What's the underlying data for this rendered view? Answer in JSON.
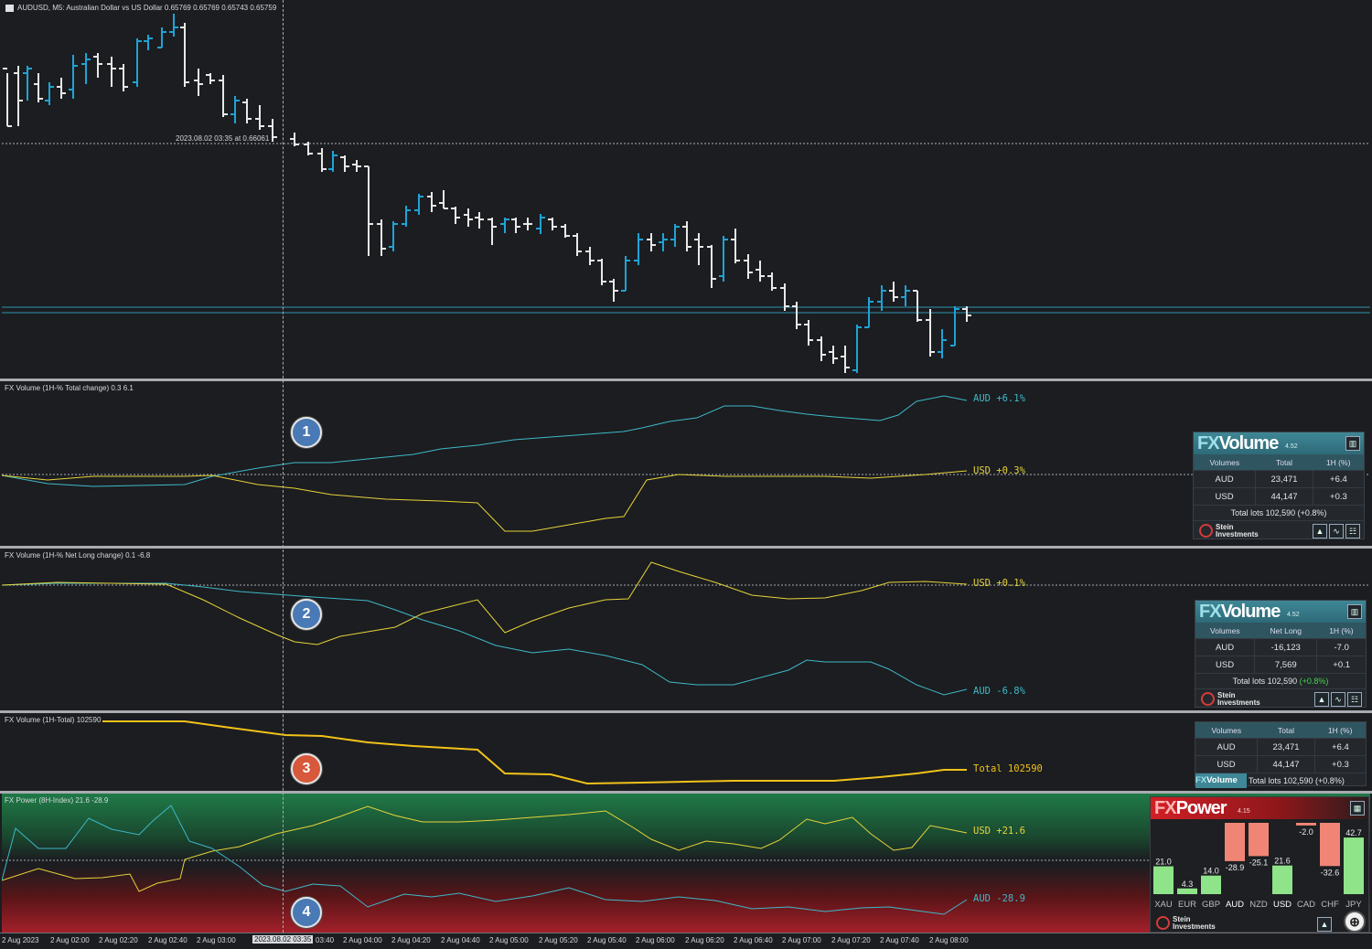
{
  "chart": {
    "title": "AUDUSD, M5:  Australian Dollar vs US Dollar  0.65769 0.65769 0.65743 0.65759",
    "crosshair_label": "2023.08.02 03:35 at 0.66061"
  },
  "panes": {
    "p1": {
      "title": "FX Volume (1H-% Total change)  0.3 6.1",
      "aud_label": "AUD +6.1%",
      "usd_label": "USD +0.3%",
      "badge": "1"
    },
    "p2": {
      "title": "FX Volume (1H-% Net Long change)  0.1 -6.8",
      "usd_label": "USD +0.1%",
      "aud_label": "AUD -6.8%",
      "badge": "2"
    },
    "p3": {
      "title": "FX Volume (1H-Total)  102590",
      "total_label": "Total 102590",
      "badge": "3"
    },
    "p4": {
      "title": "FX Power (8H-Index) 21.6 -28.9",
      "usd_label": "USD +21.6",
      "aud_label": "AUD -28.9",
      "badge": "4"
    }
  },
  "colors": {
    "aud": "#3fb8c8",
    "usd": "#e6d33a",
    "total": "#f2c21a",
    "bull": "#1fa3d6",
    "bear": "#e8e8e8"
  },
  "widget1": {
    "brand_fx": "FX",
    "brand_name": "Volume",
    "version": "4.52",
    "headers": [
      "Volumes",
      "Total",
      "1H (%)"
    ],
    "rows": [
      {
        "cur": "AUD",
        "val": "23,471",
        "pct": "+6.4"
      },
      {
        "cur": "USD",
        "val": "44,147",
        "pct": "+0.3"
      }
    ],
    "total": "Total lots 102,590 (+0.8%)",
    "footer_line1": "Stein",
    "footer_line2": "Investments"
  },
  "widget2": {
    "brand_fx": "FX",
    "brand_name": "Volume",
    "version": "4.52",
    "headers": [
      "Volumes",
      "Net Long",
      "1H (%)"
    ],
    "rows": [
      {
        "cur": "AUD",
        "val": "-16,123",
        "pct": "-7.0"
      },
      {
        "cur": "USD",
        "val": "7,569",
        "pct": "+0.1"
      }
    ],
    "total_prefix": "Total lots 102,590 ",
    "total_pct": "(+0.8%)",
    "footer_line1": "Stein",
    "footer_line2": "Investments"
  },
  "widget3": {
    "headers": [
      "Volumes",
      "Total",
      "1H (%)"
    ],
    "rows": [
      {
        "cur": "AUD",
        "val": "23,471",
        "pct": "+6.4"
      },
      {
        "cur": "USD",
        "val": "44,147",
        "pct": "+0.3"
      }
    ],
    "brand_fx": "FX",
    "brand_name": "Volume",
    "total": "Total lots 102,590 (+0.8%)"
  },
  "fxpower": {
    "brand_fx": "FX",
    "brand_name": "Power",
    "version": "4.15",
    "bars": [
      {
        "cur": "XAU",
        "value": 21.0
      },
      {
        "cur": "EUR",
        "value": 4.3
      },
      {
        "cur": "GBP",
        "value": 14.0
      },
      {
        "cur": "AUD",
        "value": -28.9
      },
      {
        "cur": "NZD",
        "value": -25.1
      },
      {
        "cur": "USD",
        "value": 21.6
      },
      {
        "cur": "CAD",
        "value": -2.0
      },
      {
        "cur": "CHF",
        "value": -32.6
      },
      {
        "cur": "JPY",
        "value": 42.7
      }
    ],
    "bar_labels": [
      "21.0",
      "4.3",
      "14.0",
      "-28.9",
      "-25.1",
      "21.6",
      "-2.0",
      "-32.6",
      "42.7"
    ],
    "footer_line1": "Stein",
    "footer_line2": "Investments"
  },
  "time_axis": {
    "ticks": [
      "2 Aug 2023",
      "2 Aug 02:00",
      "2 Aug 02:20",
      "2 Aug 02:40",
      "2 Aug 03:00",
      "03:40",
      "2 Aug 04:00",
      "2 Aug 04:20",
      "2 Aug 04:40",
      "2 Aug 05:00",
      "2 Aug 05:20",
      "2 Aug 05:40",
      "2 Aug 06:00",
      "2 Aug 06:20",
      "2 Aug 06:40",
      "2 Aug 07:00",
      "2 Aug 07:20",
      "2 Aug 07:40",
      "2 Aug 08:00"
    ],
    "cursor_label": "2023.08.02 03:35"
  }
}
